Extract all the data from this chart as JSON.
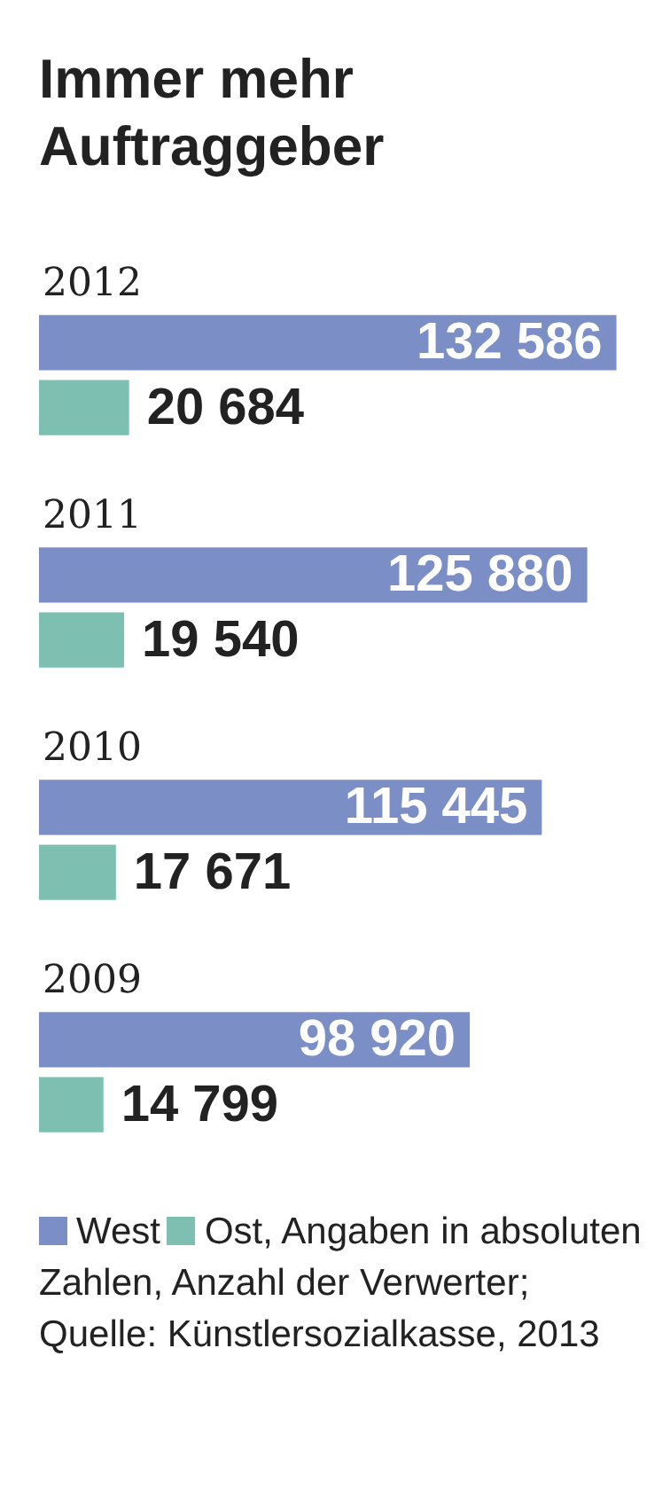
{
  "chart_data": {
    "type": "bar",
    "orientation": "horizontal",
    "title": "Immer mehr Auftraggeber",
    "categories": [
      "2012",
      "2011",
      "2010",
      "2009"
    ],
    "series": [
      {
        "name": "West",
        "color": "#7b8fc6",
        "values": [
          132586,
          125880,
          115445,
          98920
        ],
        "value_labels": [
          "132 586",
          "125 880",
          "115 445",
          "98 920"
        ]
      },
      {
        "name": "Ost",
        "color": "#7dbfb1",
        "values": [
          20684,
          19540,
          17671,
          14799
        ],
        "value_labels": [
          "20 684",
          "19 540",
          "17 671",
          "14 799"
        ]
      }
    ],
    "legend": "bottom",
    "annotations": [
      ", Angaben in absoluten Zahlen, Anzahl der Verwerter; Quelle: Künstlersozialkasse, 2013"
    ]
  }
}
